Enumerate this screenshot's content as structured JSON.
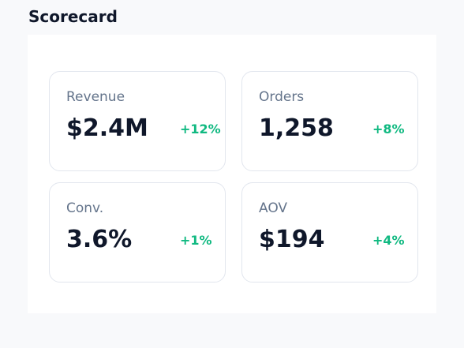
{
  "header": {
    "title": "Scorecard"
  },
  "cards": [
    {
      "label": "Revenue",
      "value": "$2.4M",
      "delta": "+12%"
    },
    {
      "label": "Orders",
      "value": "1,258",
      "delta": "+8%"
    },
    {
      "label": "Conv.",
      "value": "3.6%",
      "delta": "+1%"
    },
    {
      "label": "AOV",
      "value": "$194",
      "delta": "+4%"
    }
  ]
}
